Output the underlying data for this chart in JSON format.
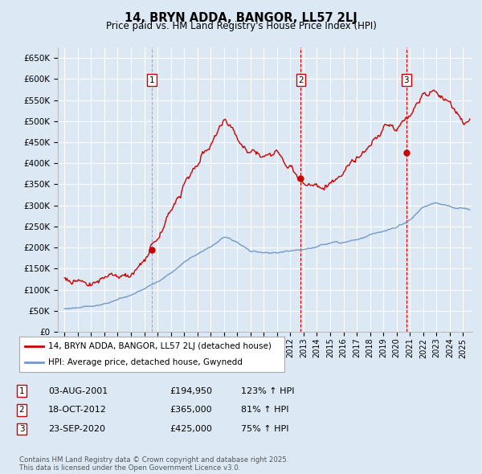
{
  "title": "14, BRYN ADDA, BANGOR, LL57 2LJ",
  "subtitle": "Price paid vs. HM Land Registry's House Price Index (HPI)",
  "ylabel_ticks": [
    "£0",
    "£50K",
    "£100K",
    "£150K",
    "£200K",
    "£250K",
    "£300K",
    "£350K",
    "£400K",
    "£450K",
    "£500K",
    "£550K",
    "£600K",
    "£650K"
  ],
  "ytick_values": [
    0,
    50000,
    100000,
    150000,
    200000,
    250000,
    300000,
    350000,
    400000,
    450000,
    500000,
    550000,
    600000,
    650000
  ],
  "ylim": [
    0,
    675000
  ],
  "xlim_start": 1994.5,
  "xlim_end": 2025.7,
  "background_color": "#dce9f5",
  "plot_bg_color": "#dce9f5",
  "grid_color": "#ffffff",
  "sale_color": "#cc0000",
  "hpi_color": "#7399c6",
  "sale_label": "14, BRYN ADDA, BANGOR, LL57 2LJ (detached house)",
  "hpi_label": "HPI: Average price, detached house, Gwynedd",
  "transactions": [
    {
      "num": 1,
      "date": "03-AUG-2001",
      "price": 194950,
      "price_str": "£194,950",
      "pct": "123%",
      "dir": "↑",
      "year": 2001.58,
      "vline_color": "#aaaaaa",
      "vline_style": "--"
    },
    {
      "num": 2,
      "date": "18-OCT-2012",
      "price": 365000,
      "price_str": "£365,000",
      "pct": "81%",
      "dir": "↑",
      "year": 2012.79,
      "vline_color": "#cc0000",
      "vline_style": "--"
    },
    {
      "num": 3,
      "date": "23-SEP-2020",
      "price": 425000,
      "price_str": "£425,000",
      "pct": "75%",
      "dir": "↑",
      "year": 2020.72,
      "vline_color": "#cc0000",
      "vline_style": "--"
    }
  ],
  "footer": "Contains HM Land Registry data © Crown copyright and database right 2025.\nThis data is licensed under the Open Government Licence v3.0.",
  "marker_box_color": "#cc0000",
  "hpi_data": {
    "years": [
      1995,
      1996,
      1997,
      1998,
      1999,
      2000,
      2001,
      2002,
      2003,
      2004,
      2005,
      2006,
      2007,
      2008,
      2009,
      2010,
      2011,
      2012,
      2013,
      2014,
      2015,
      2016,
      2017,
      2018,
      2019,
      2020,
      2021,
      2022,
      2023,
      2024,
      2025
    ],
    "values": [
      55000,
      60000,
      65000,
      70000,
      78000,
      88000,
      102000,
      120000,
      140000,
      165000,
      185000,
      200000,
      220000,
      210000,
      185000,
      185000,
      185000,
      188000,
      192000,
      198000,
      205000,
      210000,
      218000,
      230000,
      240000,
      250000,
      268000,
      295000,
      305000,
      295000,
      290000
    ]
  },
  "sale_data": {
    "years": [
      1995,
      1996,
      1997,
      1998,
      1999,
      2000,
      2001,
      2002,
      2003,
      2004,
      2005,
      2006,
      2007,
      2008,
      2009,
      2010,
      2011,
      2012,
      2013,
      2014,
      2015,
      2016,
      2017,
      2018,
      2019,
      2020,
      2021,
      2022,
      2023,
      2024,
      2025
    ],
    "values": [
      128000,
      132000,
      138000,
      145000,
      155000,
      168000,
      190000,
      240000,
      310000,
      370000,
      410000,
      435000,
      490000,
      450000,
      410000,
      420000,
      430000,
      415000,
      380000,
      385000,
      395000,
      405000,
      420000,
      440000,
      455000,
      440000,
      480000,
      530000,
      545000,
      530000,
      505000
    ]
  }
}
